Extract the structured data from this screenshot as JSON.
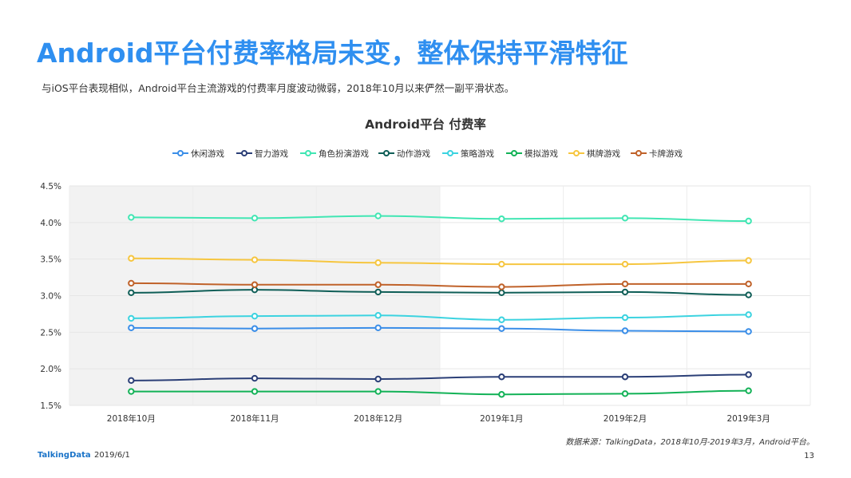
{
  "page": {
    "title": "Android平台付费率格局未变，整体保持平滑特征",
    "subtitle": "与iOS平台表现相似，Android平台主流游戏的付费率月度波动微弱，2018年10月以来俨然一副平滑状态。",
    "source": "数据来源：TalkingData，2018年10月-2019年3月，Android平台。",
    "footer_logo": "TalkingData",
    "footer_date": "2019/6/1",
    "page_number": "13"
  },
  "chart_data": {
    "type": "line",
    "title": "Android平台  付费率",
    "categories": [
      "2018年10月",
      "2018年11月",
      "2018年12月",
      "2019年1月",
      "2019年2月",
      "2019年3月"
    ],
    "ylim": [
      1.5,
      4.5
    ],
    "yticks": [
      "1.5%",
      "2.0%",
      "2.5%",
      "3.0%",
      "3.5%",
      "4.0%",
      "4.5%"
    ],
    "ytick_values": [
      1.5,
      2.0,
      2.5,
      3.0,
      3.5,
      4.0,
      4.5
    ],
    "grid": true,
    "legend_position": "top",
    "shaded_categories": [
      "2018年10月",
      "2018年11月",
      "2018年12月"
    ],
    "series": [
      {
        "name": "休闲游戏",
        "color": "#3b8ee8",
        "values": [
          2.56,
          2.55,
          2.56,
          2.55,
          2.52,
          2.51
        ]
      },
      {
        "name": "智力游戏",
        "color": "#2b3f77",
        "values": [
          1.84,
          1.87,
          1.86,
          1.89,
          1.89,
          1.92
        ]
      },
      {
        "name": "角色扮演游戏",
        "color": "#41e6b3",
        "values": [
          4.07,
          4.06,
          4.09,
          4.05,
          4.06,
          4.02
        ]
      },
      {
        "name": "动作游戏",
        "color": "#0f5e57",
        "values": [
          3.04,
          3.08,
          3.05,
          3.04,
          3.05,
          3.01
        ]
      },
      {
        "name": "策略游戏",
        "color": "#3cd3e0",
        "values": [
          2.69,
          2.72,
          2.73,
          2.67,
          2.7,
          2.74
        ]
      },
      {
        "name": "模拟游戏",
        "color": "#13b257",
        "values": [
          1.69,
          1.69,
          1.69,
          1.65,
          1.66,
          1.7
        ]
      },
      {
        "name": "棋牌游戏",
        "color": "#f6c640",
        "values": [
          3.51,
          3.49,
          3.45,
          3.43,
          3.43,
          3.48
        ]
      },
      {
        "name": "卡牌游戏",
        "color": "#c0622a",
        "values": [
          3.17,
          3.15,
          3.15,
          3.12,
          3.16,
          3.16
        ]
      }
    ]
  }
}
